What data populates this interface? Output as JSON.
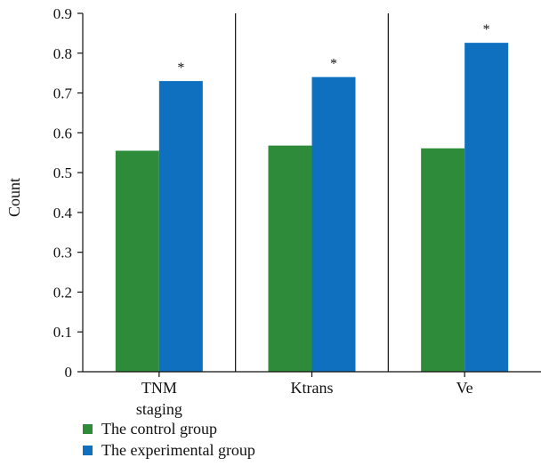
{
  "chart_data": {
    "type": "bar",
    "categories": [
      "TNM staging",
      "Ktrans",
      "Ve"
    ],
    "category_lines": [
      [
        "TNM",
        "staging"
      ],
      [
        "Ktrans"
      ],
      [
        "Ve"
      ]
    ],
    "series": [
      {
        "name": "The control group",
        "values": [
          0.555,
          0.568,
          0.561
        ],
        "color": "#2e8b3a"
      },
      {
        "name": "The experimental group",
        "values": [
          0.73,
          0.74,
          0.826
        ],
        "color": "#0f70bf"
      }
    ],
    "significance_markers": [
      "*",
      "*",
      "*"
    ],
    "ylabel": "Count",
    "xlabel": "",
    "ylim": [
      0,
      0.9
    ],
    "yticks": [
      "0",
      "0.1",
      "0.2",
      "0.3",
      "0.4",
      "0.5",
      "0.6",
      "0.7",
      "0.8",
      "0.9"
    ],
    "legend_position": "bottom-left",
    "panel_separators": true
  }
}
